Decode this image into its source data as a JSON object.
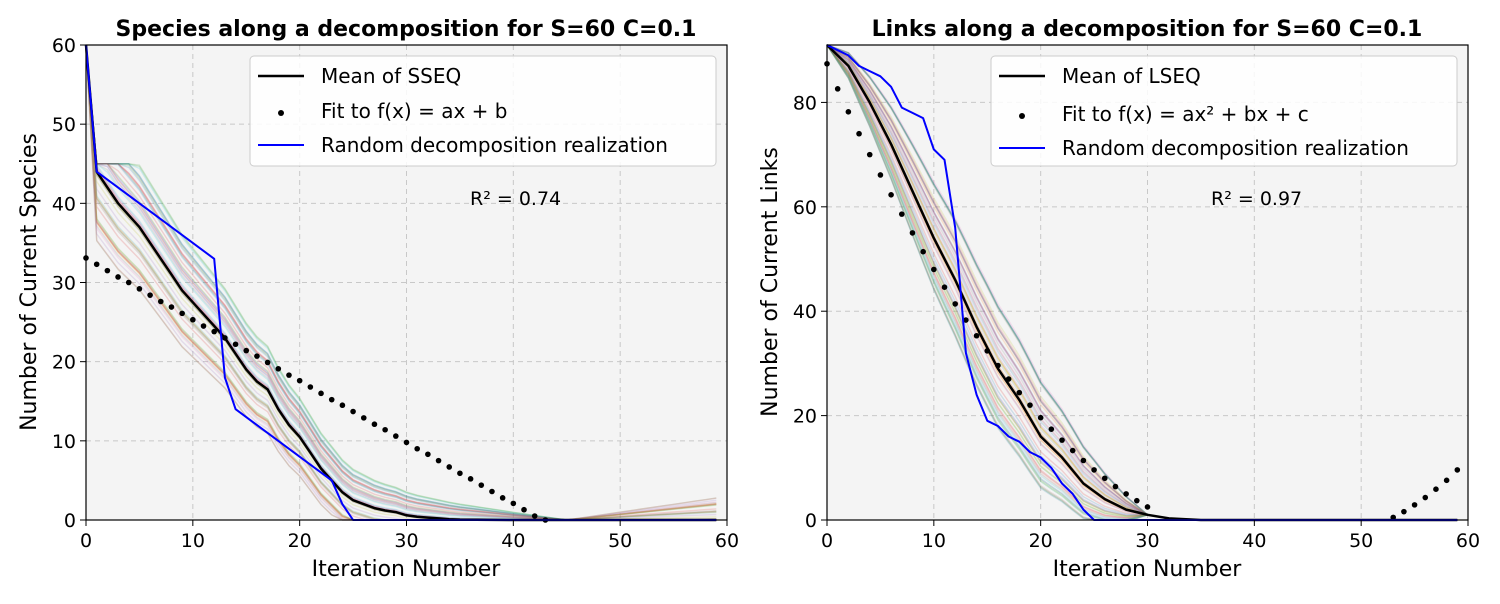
{
  "chart_data": [
    {
      "type": "line",
      "title": "Species along a decomposition for S=60 C=0.1",
      "xlabel": "Iteration Number",
      "ylabel": "Number of Current Species",
      "xlim": [
        0,
        60
      ],
      "ylim": [
        0,
        60
      ],
      "xticks": [
        "0",
        "10",
        "20",
        "30",
        "40",
        "50",
        "60"
      ],
      "yticks": [
        "0",
        "10",
        "20",
        "30",
        "40",
        "50",
        "60"
      ],
      "grid": true,
      "legend_position": "top-right",
      "legend": [
        {
          "label": "Mean of SSEQ",
          "kind": "line",
          "color": "#000000"
        },
        {
          "label": "Fit to f(x) = ax + b",
          "kind": "dots",
          "color": "#000000"
        },
        {
          "label": "Random decomposition realization",
          "kind": "line",
          "color": "#0000ff"
        }
      ],
      "annotation": "R² = 0.74",
      "series": [
        {
          "name": "Mean of SSEQ",
          "color": "#000000",
          "x": [
            0,
            1,
            2,
            3,
            4,
            5,
            6,
            7,
            8,
            9,
            10,
            11,
            12,
            13,
            14,
            15,
            16,
            17,
            18,
            19,
            20,
            21,
            22,
            23,
            24,
            25,
            26,
            27,
            28,
            29,
            30,
            31,
            32,
            33,
            34,
            35,
            40,
            45,
            50,
            55,
            59
          ],
          "y": [
            60,
            44,
            42,
            40,
            38.5,
            37,
            35,
            33,
            31,
            29,
            27.5,
            26,
            24.5,
            23,
            21,
            19,
            17.5,
            16.5,
            14,
            12,
            10.5,
            8.5,
            6.5,
            5,
            3.5,
            2.5,
            2,
            1.5,
            1.2,
            1,
            0.6,
            0.4,
            0.3,
            0.2,
            0.1,
            0.05,
            0,
            0,
            0,
            0,
            0
          ]
        },
        {
          "name": "Fit to f(x) = ax + b",
          "color": "#000000",
          "x": [
            0,
            1,
            2,
            3,
            4,
            5,
            6,
            7,
            8,
            9,
            10,
            11,
            12,
            13,
            14,
            15,
            16,
            17,
            18,
            19,
            20,
            21,
            22,
            23,
            24,
            25,
            26,
            27,
            28,
            29,
            30,
            31,
            32,
            33,
            34,
            35,
            36,
            37,
            38,
            39,
            40,
            41,
            42,
            43
          ],
          "y": [
            33.1,
            32.3,
            31.5,
            30.7,
            30.0,
            29.2,
            28.4,
            27.6,
            26.9,
            26.1,
            25.3,
            24.5,
            23.8,
            23.0,
            22.2,
            21.4,
            20.7,
            19.9,
            19.1,
            18.3,
            17.6,
            16.8,
            16.0,
            15.2,
            14.5,
            13.7,
            12.9,
            12.1,
            11.4,
            10.6,
            9.8,
            9.0,
            8.3,
            7.5,
            6.7,
            5.9,
            5.2,
            4.4,
            3.6,
            2.8,
            2.1,
            1.3,
            0.5,
            0.0
          ]
        },
        {
          "name": "Random decomposition realization",
          "color": "#0000ff",
          "x": [
            0,
            1,
            12,
            13,
            14,
            23,
            24,
            25,
            26,
            59
          ],
          "y": [
            60,
            44,
            33,
            18,
            14,
            5,
            2,
            0,
            0,
            0
          ]
        }
      ]
    },
    {
      "type": "line",
      "title": "Links along a decomposition for S=60 C=0.1",
      "xlabel": "Iteration Number",
      "ylabel": "Number of Current Links",
      "xlim": [
        0,
        60
      ],
      "ylim": [
        0,
        91
      ],
      "xticks": [
        "0",
        "10",
        "20",
        "30",
        "40",
        "50",
        "60"
      ],
      "yticks": [
        "0",
        "20",
        "40",
        "60",
        "80"
      ],
      "grid": true,
      "legend_position": "top-right",
      "legend": [
        {
          "label": "Mean of LSEQ",
          "kind": "line",
          "color": "#000000"
        },
        {
          "label": "Fit to f(x) = ax² + bx + c",
          "kind": "dots",
          "color": "#000000"
        },
        {
          "label": "Random decomposition realization",
          "kind": "line",
          "color": "#0000ff"
        }
      ],
      "annotation": "R² = 0.97",
      "series": [
        {
          "name": "Mean of LSEQ",
          "color": "#000000",
          "x": [
            0,
            2,
            4,
            6,
            8,
            10,
            12,
            14,
            16,
            18,
            20,
            22,
            24,
            26,
            28,
            30,
            32,
            35,
            59
          ],
          "y": [
            91,
            87,
            80,
            72,
            63,
            54,
            46,
            37,
            29,
            23,
            16,
            12,
            7,
            4,
            2,
            1,
            0.3,
            0,
            0
          ]
        },
        {
          "name": "Fit to f(x) = ax² + bx + c",
          "color": "#000000",
          "x": [
            0,
            1,
            2,
            3,
            4,
            5,
            6,
            7,
            8,
            9,
            10,
            11,
            12,
            13,
            14,
            15,
            16,
            17,
            18,
            19,
            20,
            21,
            22,
            23,
            24,
            25,
            26,
            27,
            28,
            29,
            30,
            53,
            54,
            55,
            56,
            57,
            58,
            59
          ],
          "y": [
            87.4,
            82.6,
            78.2,
            74.0,
            70.0,
            66.1,
            62.3,
            58.6,
            55.0,
            51.4,
            48.0,
            44.6,
            41.4,
            38.3,
            35.3,
            32.4,
            29.6,
            27.0,
            24.4,
            22.0,
            19.6,
            17.4,
            15.3,
            13.3,
            11.4,
            9.6,
            8.0,
            6.4,
            5.0,
            3.7,
            2.5,
            0.5,
            1.6,
            2.9,
            4.3,
            5.9,
            7.6,
            9.6
          ]
        },
        {
          "name": "Random decomposition realization",
          "color": "#0000ff",
          "x": [
            0,
            1,
            2,
            3,
            4,
            5,
            6,
            7,
            8,
            9,
            10,
            11,
            12,
            13,
            14,
            15,
            16,
            17,
            18,
            19,
            20,
            21,
            22,
            23,
            24,
            25,
            59
          ],
          "y": [
            91,
            90,
            89,
            87,
            86,
            85,
            83,
            79,
            78,
            77,
            71,
            69,
            56,
            32,
            24,
            19,
            18,
            16,
            15,
            13,
            12,
            10,
            7,
            5,
            2,
            0,
            0
          ]
        }
      ]
    }
  ],
  "background_palette": [
    "#1f77b4",
    "#ff7f0e",
    "#2ca02c",
    "#d62728",
    "#9467bd",
    "#8c564b",
    "#e377c2",
    "#7f7f7f",
    "#bcbd22",
    "#17becf"
  ]
}
